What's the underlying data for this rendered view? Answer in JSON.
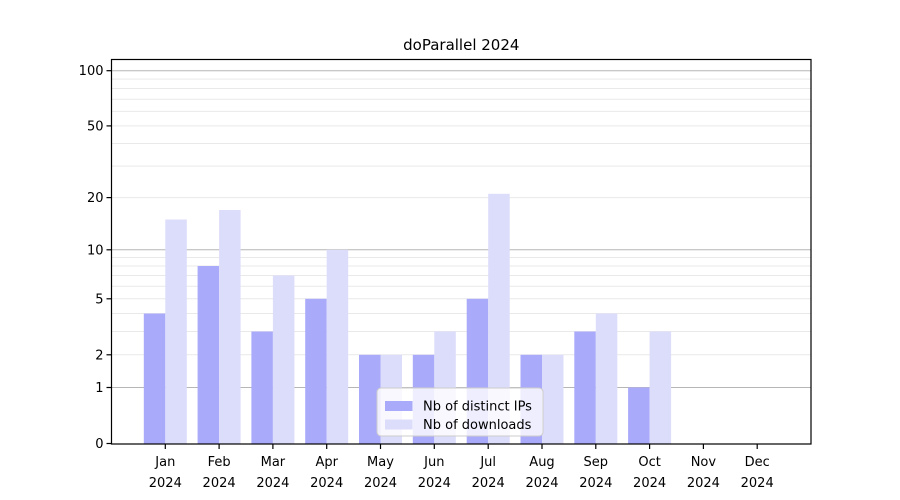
{
  "title": "doParallel 2024",
  "chart_data": {
    "type": "bar",
    "title": "doParallel 2024",
    "categories": [
      "Jan",
      "Feb",
      "Mar",
      "Apr",
      "May",
      "Jun",
      "Jul",
      "Aug",
      "Sep",
      "Oct",
      "Nov",
      "Dec"
    ],
    "category_year": "2024",
    "series": [
      {
        "name": "Nb of distinct IPs",
        "color": "#aaaafb",
        "values": [
          4,
          8,
          3,
          5,
          2,
          2,
          5,
          2,
          3,
          1,
          0,
          0
        ]
      },
      {
        "name": "Nb of downloads",
        "color": "#dcdcfb",
        "values": [
          15,
          17,
          7,
          10,
          2,
          3,
          21,
          2,
          4,
          3,
          0,
          0
        ]
      }
    ],
    "xlabel": "",
    "ylabel": "",
    "y_scale": "log1p",
    "y_ticks": [
      0,
      1,
      2,
      5,
      10,
      20,
      50,
      100
    ],
    "y_major_grid": [
      1,
      10,
      100
    ],
    "y_minor_grid": [
      2,
      3,
      4,
      5,
      6,
      7,
      8,
      9,
      20,
      30,
      40,
      50,
      60,
      70,
      80,
      90
    ],
    "ylim": [
      0,
      115
    ],
    "grid": true,
    "grid_major_color": "#b6b6b6",
    "grid_minor_color": "#e9e9e9",
    "spine_color": "#000000",
    "legend": {
      "position": "lower center",
      "entries": [
        "Nb of distinct IPs",
        "Nb of downloads"
      ]
    }
  }
}
